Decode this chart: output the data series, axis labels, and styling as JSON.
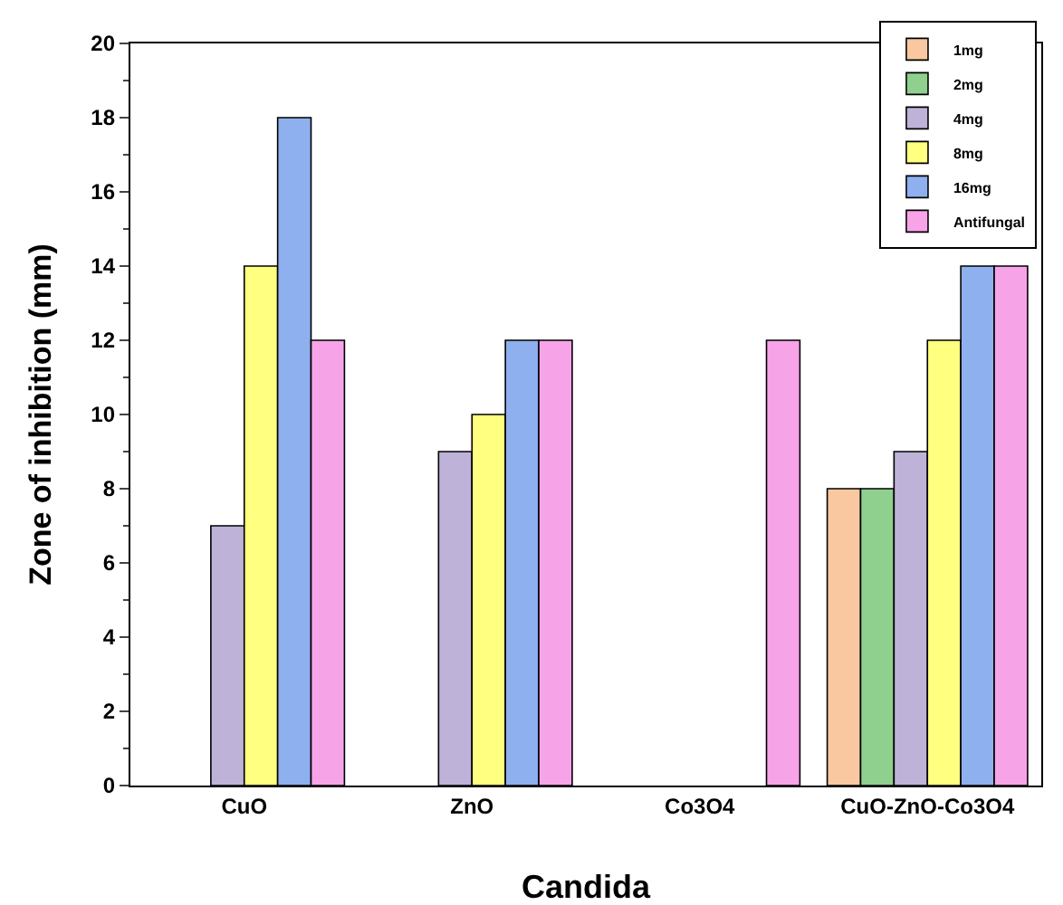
{
  "chart_data": {
    "type": "bar",
    "xlabel": "Candida",
    "ylabel": "Zone of inhibition (mm)",
    "categories": [
      "CuO",
      "ZnO",
      "Co3O4",
      "CuO-ZnO-Co3O4"
    ],
    "series": [
      {
        "name": "1mg",
        "color": "#f9c8a0",
        "values": [
          null,
          null,
          null,
          8
        ]
      },
      {
        "name": "2mg",
        "color": "#8fd08f",
        "values": [
          null,
          null,
          null,
          8
        ]
      },
      {
        "name": "4mg",
        "color": "#bfb2d8",
        "values": [
          7,
          9,
          null,
          9
        ]
      },
      {
        "name": "8mg",
        "color": "#ffff80",
        "values": [
          14,
          10,
          null,
          12
        ]
      },
      {
        "name": "16mg",
        "color": "#8fb0ee",
        "values": [
          18,
          12,
          null,
          14
        ]
      },
      {
        "name": "Antifungal",
        "color": "#f7a3e8",
        "values": [
          12,
          12,
          12,
          14
        ]
      }
    ],
    "ylim": [
      0,
      20
    ],
    "yticks": [
      0,
      2,
      4,
      6,
      8,
      10,
      12,
      14,
      16,
      18,
      20
    ],
    "grid": false,
    "legend": "top right"
  }
}
